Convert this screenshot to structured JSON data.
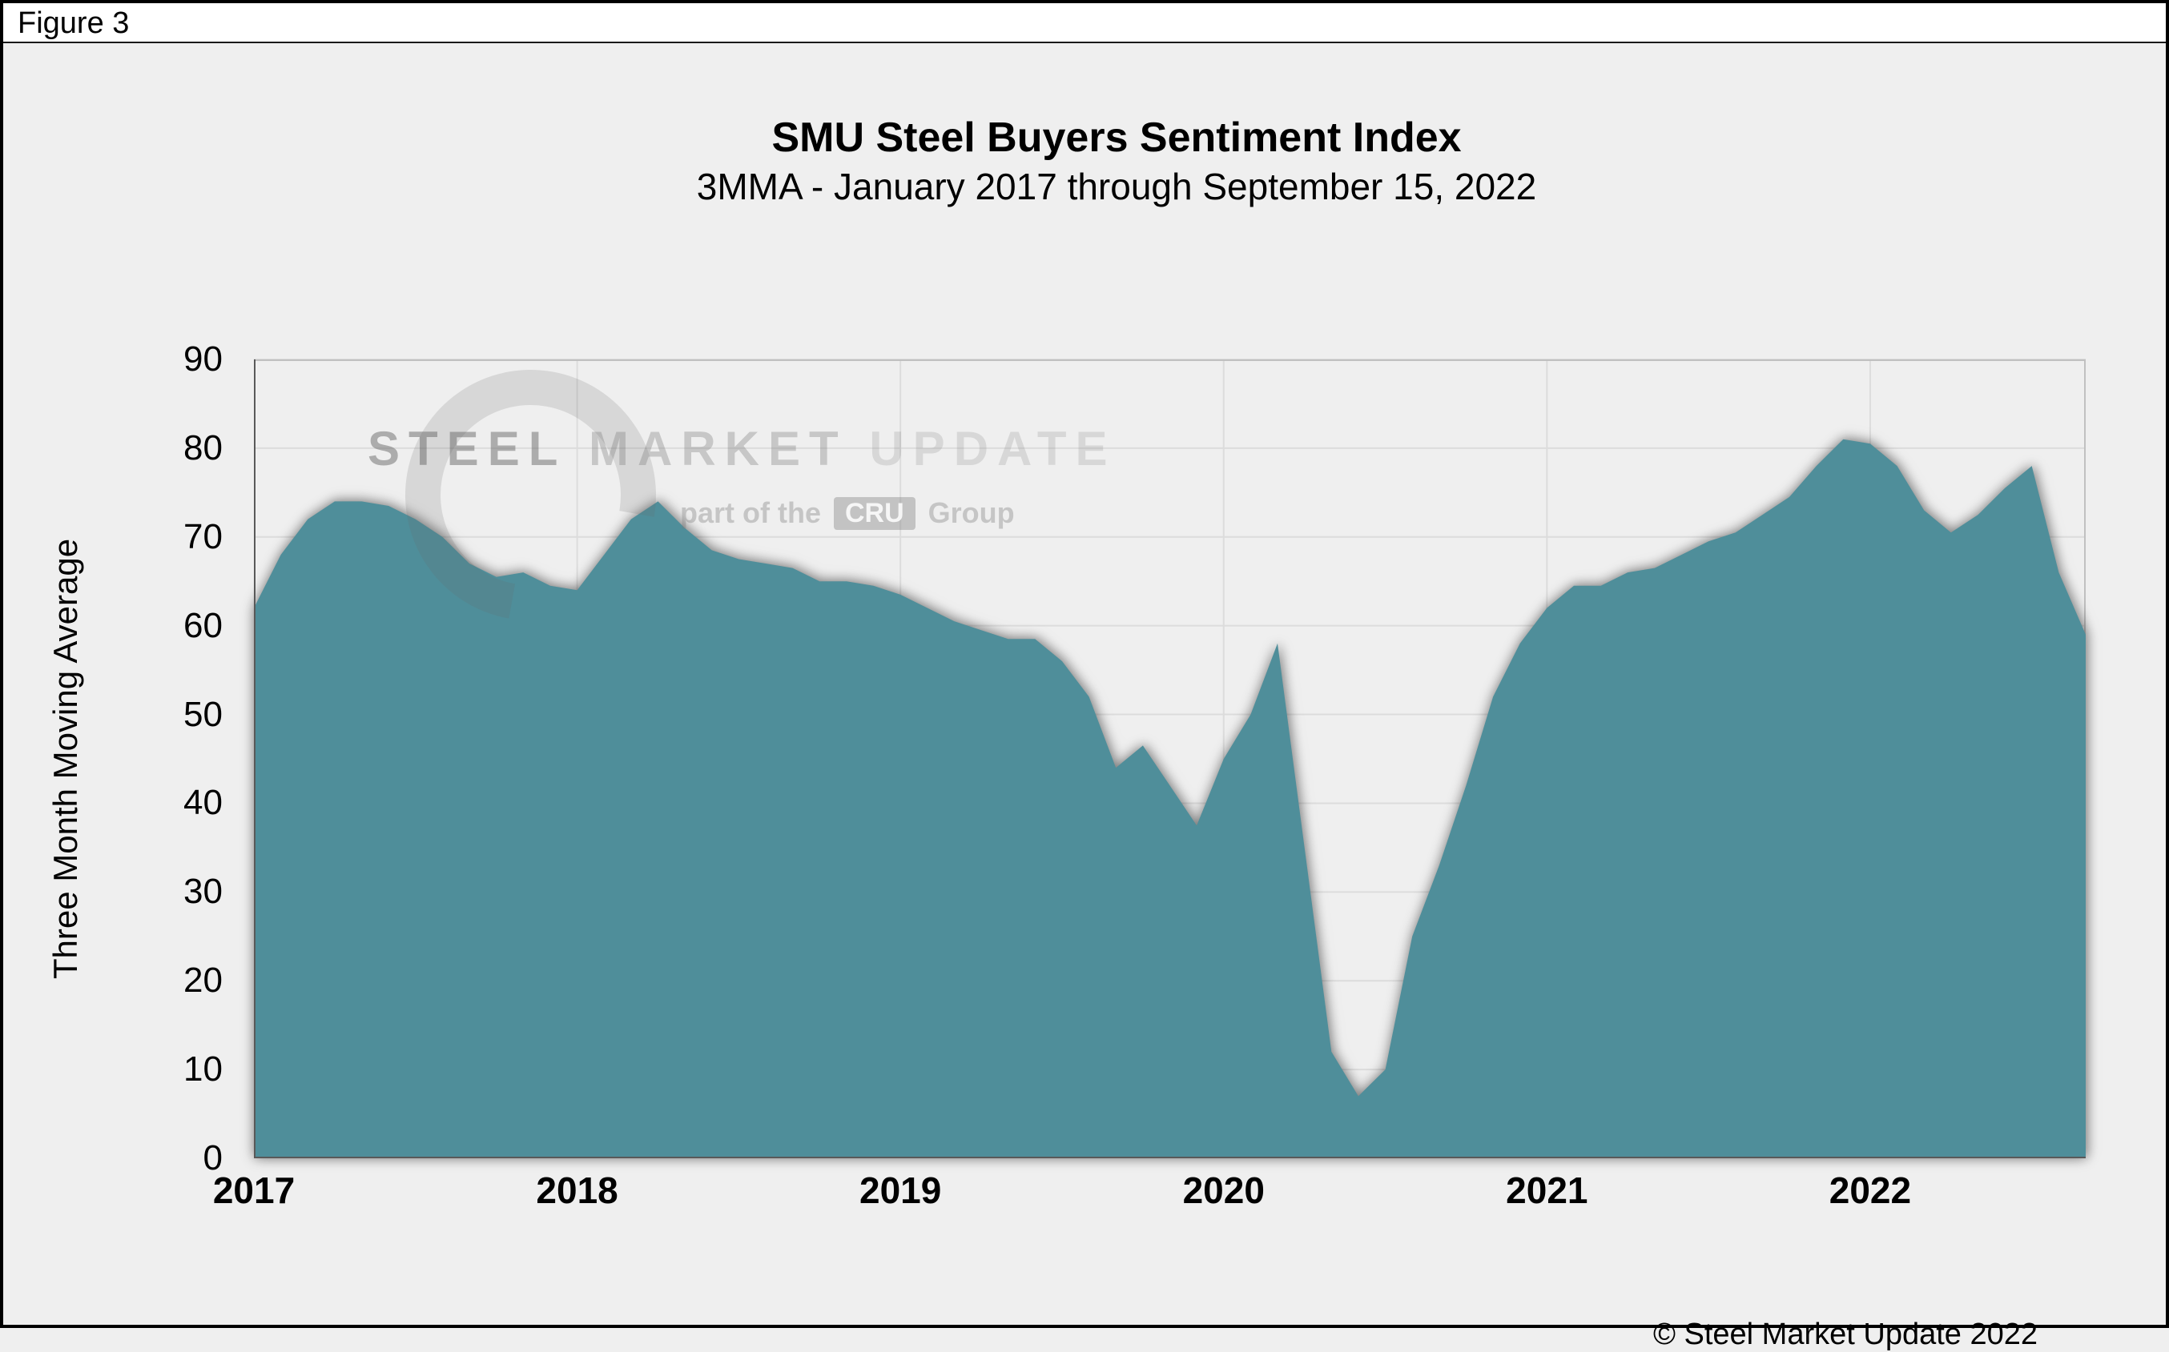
{
  "header": {
    "figure_label": "Figure 3"
  },
  "footer": {
    "copyright": "© Steel Market Update 2022"
  },
  "watermark": {
    "word1": "STEEL",
    "word2": "MARKET",
    "word3": "UPDATE",
    "sub_prefix": "part of the",
    "sub_box": "CRU",
    "sub_suffix": "Group"
  },
  "colors": {
    "area_fill": "#4F8E9A",
    "panel_bg": "#EFEFEF",
    "gridline": "#DCDCDC",
    "plot_border": "#C0C0C0",
    "axis_line": "#595959"
  },
  "chart_data": {
    "type": "area",
    "title": "SMU Steel Buyers Sentiment Index",
    "subtitle": "3MMA - January 2017 through September 15, 2022",
    "xlabel": "",
    "ylabel": "Three Month Moving Average",
    "xlim": [
      2017.0,
      2022.6667
    ],
    "ylim": [
      0,
      90
    ],
    "x_ticks": [
      2017,
      2018,
      2019,
      2020,
      2021,
      2022
    ],
    "y_ticks": [
      0,
      10,
      20,
      30,
      40,
      50,
      60,
      70,
      80,
      90
    ],
    "grid": true,
    "legend": "none",
    "series": [
      {
        "name": "SMU Steel Buyers Sentiment Index (3MMA)",
        "x_start_year": 2017,
        "x_interval_months": 1,
        "values": [
          62,
          68,
          72,
          74,
          74,
          73.5,
          72,
          70,
          67,
          65.5,
          66,
          64.5,
          64,
          68,
          72,
          74,
          71,
          68.5,
          67.5,
          67,
          66.5,
          65,
          65,
          64.5,
          63.5,
          62,
          60.5,
          59.5,
          58.5,
          58.5,
          56,
          52,
          44,
          46.5,
          42,
          37.5,
          45,
          50,
          58,
          35,
          12,
          7,
          10,
          25,
          33,
          42,
          52,
          58,
          62,
          64.5,
          64.5,
          66,
          66.5,
          68,
          69.5,
          70.5,
          72.5,
          74.5,
          78,
          81,
          80.5,
          78,
          73,
          70.5,
          72.5,
          75.5,
          78,
          66,
          59
        ]
      }
    ]
  }
}
